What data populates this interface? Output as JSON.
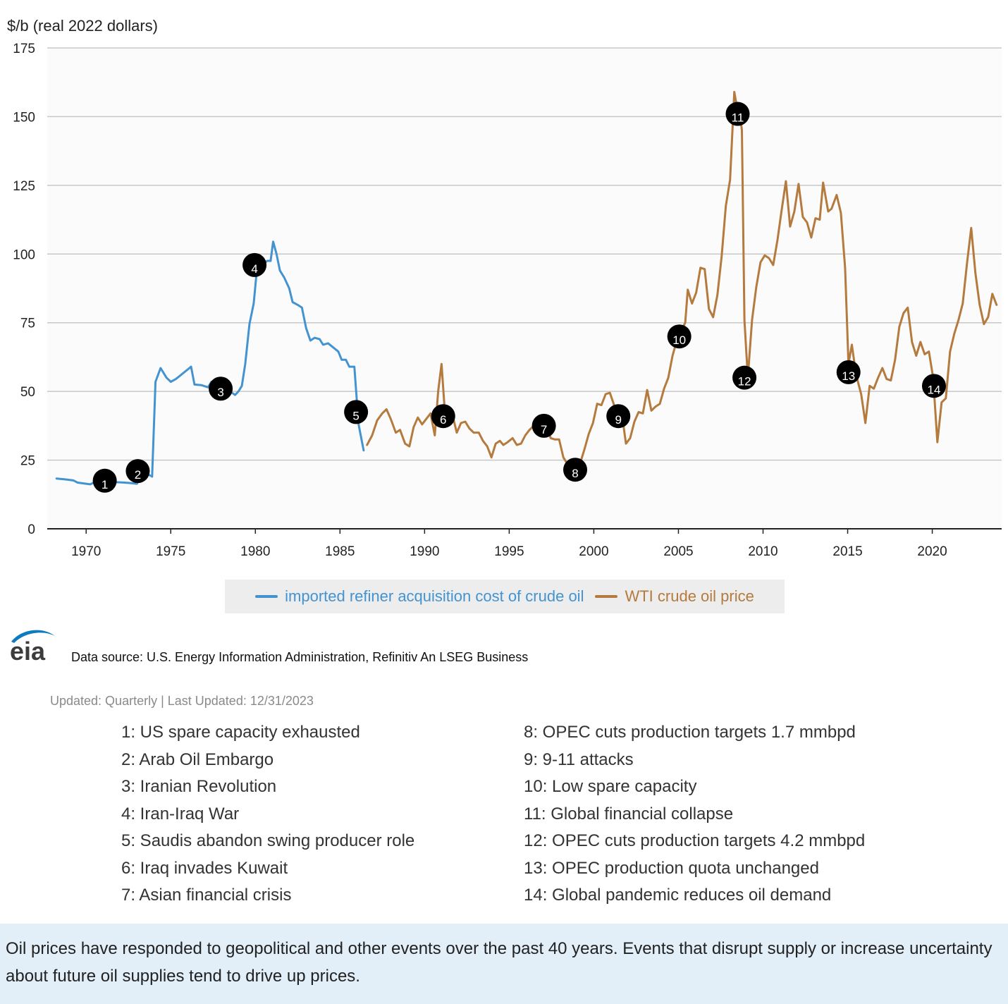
{
  "chart_data": {
    "type": "line",
    "ylabel": "$/b (real 2022 dollars)",
    "ylim": [
      0,
      175
    ],
    "xlim": [
      1967.7,
      2024.1
    ],
    "yticks": [
      0,
      25,
      50,
      75,
      100,
      125,
      150,
      175
    ],
    "xticks": [
      1970,
      1975,
      1980,
      1985,
      1990,
      1995,
      2000,
      2005,
      2010,
      2015,
      2020
    ],
    "grid": true,
    "legend_position": "bottom-center",
    "series": [
      {
        "name": "imported refiner acquisition cost of crude oil",
        "color": "#4493d1",
        "points": [
          [
            1968.25,
            18.3
          ],
          [
            1968.75,
            18
          ],
          [
            1969.25,
            17.6
          ],
          [
            1969.5,
            16.8
          ],
          [
            1970,
            16.4
          ],
          [
            1970.25,
            16.2
          ],
          [
            1970.5,
            17
          ],
          [
            1971,
            16.8
          ],
          [
            1971.5,
            17
          ],
          [
            1972,
            16.9
          ],
          [
            1972.5,
            16.7
          ],
          [
            1973,
            16.4
          ],
          [
            1973.25,
            19
          ],
          [
            1973.5,
            20
          ],
          [
            1973.75,
            19.5
          ],
          [
            1973.9,
            19
          ],
          [
            1974.1,
            53.5
          ],
          [
            1974.4,
            58.5
          ],
          [
            1974.75,
            55
          ],
          [
            1975,
            53.5
          ],
          [
            1975.3,
            54.5
          ],
          [
            1975.6,
            56
          ],
          [
            1976,
            58
          ],
          [
            1976.2,
            59
          ],
          [
            1976.4,
            52.5
          ],
          [
            1976.8,
            52.3
          ],
          [
            1977.2,
            51.5
          ],
          [
            1977.4,
            53.5
          ],
          [
            1977.75,
            53
          ],
          [
            1978.2,
            51
          ],
          [
            1978.5,
            50
          ],
          [
            1978.8,
            48.7
          ],
          [
            1979,
            50
          ],
          [
            1979.2,
            52
          ],
          [
            1979.4,
            60
          ],
          [
            1979.65,
            74.5
          ],
          [
            1979.9,
            82
          ],
          [
            1980.1,
            95
          ],
          [
            1980.4,
            96
          ],
          [
            1980.7,
            97.5
          ],
          [
            1980.9,
            97.5
          ],
          [
            1981.05,
            104.5
          ],
          [
            1981.25,
            100
          ],
          [
            1981.45,
            94
          ],
          [
            1981.7,
            91.5
          ],
          [
            1982,
            87.5
          ],
          [
            1982.2,
            82.5
          ],
          [
            1982.5,
            81.5
          ],
          [
            1982.75,
            80.5
          ],
          [
            1983,
            73
          ],
          [
            1983.25,
            68.5
          ],
          [
            1983.5,
            69.5
          ],
          [
            1983.8,
            69
          ],
          [
            1984,
            67
          ],
          [
            1984.3,
            67.5
          ],
          [
            1984.7,
            65.5
          ],
          [
            1984.9,
            64.5
          ],
          [
            1985.1,
            61.5
          ],
          [
            1985.35,
            61.5
          ],
          [
            1985.55,
            59
          ],
          [
            1985.85,
            59
          ],
          [
            1986.1,
            38
          ],
          [
            1986.4,
            28.5
          ]
        ]
      },
      {
        "name": "WTI crude oil price",
        "color": "#b47a3e",
        "points": [
          [
            1986.6,
            30.5
          ],
          [
            1986.9,
            34
          ],
          [
            1987.2,
            39.5
          ],
          [
            1987.5,
            42
          ],
          [
            1987.75,
            43.5
          ],
          [
            1988,
            40
          ],
          [
            1988.3,
            35
          ],
          [
            1988.55,
            36
          ],
          [
            1988.85,
            31
          ],
          [
            1989.1,
            30
          ],
          [
            1989.35,
            37
          ],
          [
            1989.6,
            40.5
          ],
          [
            1989.85,
            38
          ],
          [
            1990.1,
            40
          ],
          [
            1990.35,
            42
          ],
          [
            1990.6,
            34
          ],
          [
            1990.8,
            50
          ],
          [
            1991,
            60
          ],
          [
            1991.2,
            42
          ],
          [
            1991.45,
            40
          ],
          [
            1991.7,
            40
          ],
          [
            1991.9,
            35
          ],
          [
            1992.15,
            38.5
          ],
          [
            1992.4,
            39
          ],
          [
            1992.65,
            36.5
          ],
          [
            1992.9,
            35
          ],
          [
            1993.2,
            35
          ],
          [
            1993.45,
            32
          ],
          [
            1993.7,
            30
          ],
          [
            1993.95,
            26
          ],
          [
            1994.2,
            31
          ],
          [
            1994.45,
            32
          ],
          [
            1994.65,
            30.5
          ],
          [
            1994.9,
            31.5
          ],
          [
            1995.2,
            33
          ],
          [
            1995.45,
            30.5
          ],
          [
            1995.7,
            31
          ],
          [
            1995.95,
            34
          ],
          [
            1996.2,
            36
          ],
          [
            1996.45,
            37.5
          ],
          [
            1996.7,
            38.5
          ],
          [
            1996.95,
            39.5
          ],
          [
            1997.2,
            37.5
          ],
          [
            1997.45,
            33
          ],
          [
            1997.7,
            32.5
          ],
          [
            1997.95,
            32.5
          ],
          [
            1998.2,
            26
          ],
          [
            1998.45,
            23.5
          ],
          [
            1998.7,
            22.5
          ],
          [
            1998.95,
            22
          ],
          [
            1999.2,
            24
          ],
          [
            1999.45,
            29
          ],
          [
            1999.7,
            34.5
          ],
          [
            1999.95,
            38.5
          ],
          [
            2000.2,
            45.5
          ],
          [
            2000.45,
            45
          ],
          [
            2000.7,
            49
          ],
          [
            2000.95,
            49.5
          ],
          [
            2001.2,
            45
          ],
          [
            2001.45,
            44
          ],
          [
            2001.7,
            40
          ],
          [
            2001.9,
            31
          ],
          [
            2002.15,
            33
          ],
          [
            2002.4,
            39
          ],
          [
            2002.65,
            42.5
          ],
          [
            2002.9,
            42
          ],
          [
            2003.15,
            50.5
          ],
          [
            2003.4,
            43
          ],
          [
            2003.65,
            44.5
          ],
          [
            2003.9,
            45.5
          ],
          [
            2004.15,
            51
          ],
          [
            2004.4,
            55
          ],
          [
            2004.65,
            63
          ],
          [
            2004.9,
            68.5
          ],
          [
            2005.15,
            72
          ],
          [
            2005.4,
            75
          ],
          [
            2005.55,
            87
          ],
          [
            2005.8,
            82
          ],
          [
            2006.05,
            86
          ],
          [
            2006.3,
            95
          ],
          [
            2006.55,
            94.5
          ],
          [
            2006.8,
            80
          ],
          [
            2007.05,
            77
          ],
          [
            2007.3,
            85
          ],
          [
            2007.55,
            99
          ],
          [
            2007.8,
            117.5
          ],
          [
            2008.05,
            127
          ],
          [
            2008.3,
            159
          ],
          [
            2008.5,
            152
          ],
          [
            2008.65,
            150
          ],
          [
            2008.75,
            145
          ],
          [
            2008.9,
            76
          ],
          [
            2009.1,
            55
          ],
          [
            2009.35,
            76
          ],
          [
            2009.6,
            88
          ],
          [
            2009.85,
            97
          ],
          [
            2010.1,
            99.5
          ],
          [
            2010.35,
            98.5
          ],
          [
            2010.6,
            96
          ],
          [
            2010.85,
            105
          ],
          [
            2011.1,
            116
          ],
          [
            2011.35,
            126.5
          ],
          [
            2011.6,
            110
          ],
          [
            2011.85,
            115.5
          ],
          [
            2012.1,
            125.5
          ],
          [
            2012.35,
            113.5
          ],
          [
            2012.6,
            111.5
          ],
          [
            2012.85,
            106
          ],
          [
            2013.1,
            113
          ],
          [
            2013.35,
            112.5
          ],
          [
            2013.55,
            126
          ],
          [
            2013.85,
            115.5
          ],
          [
            2014.05,
            116.5
          ],
          [
            2014.35,
            121.5
          ],
          [
            2014.6,
            115
          ],
          [
            2014.85,
            95
          ],
          [
            2015.05,
            60
          ],
          [
            2015.25,
            67
          ],
          [
            2015.5,
            56
          ],
          [
            2015.8,
            49
          ],
          [
            2016.05,
            38.5
          ],
          [
            2016.3,
            52
          ],
          [
            2016.55,
            51
          ],
          [
            2016.8,
            55
          ],
          [
            2017.05,
            58.5
          ],
          [
            2017.3,
            54.5
          ],
          [
            2017.55,
            54
          ],
          [
            2017.8,
            61.5
          ],
          [
            2018.05,
            73.5
          ],
          [
            2018.3,
            78.5
          ],
          [
            2018.55,
            80.5
          ],
          [
            2018.8,
            68
          ],
          [
            2019.05,
            63
          ],
          [
            2019.3,
            68
          ],
          [
            2019.55,
            63.5
          ],
          [
            2019.8,
            64.5
          ],
          [
            2020.05,
            55
          ],
          [
            2020.3,
            31.5
          ],
          [
            2020.55,
            46
          ],
          [
            2020.8,
            47.5
          ],
          [
            2021.05,
            64.5
          ],
          [
            2021.3,
            71
          ],
          [
            2021.55,
            76
          ],
          [
            2021.8,
            82
          ],
          [
            2022.05,
            96.5
          ],
          [
            2022.3,
            109.5
          ],
          [
            2022.55,
            93
          ],
          [
            2022.8,
            81.5
          ],
          [
            2023.05,
            74.5
          ],
          [
            2023.3,
            77
          ],
          [
            2023.55,
            85.5
          ],
          [
            2023.8,
            81.5
          ]
        ]
      }
    ],
    "annotations": [
      {
        "label": "1",
        "x": 1971.1,
        "y": 17.5
      },
      {
        "label": "2",
        "x": 1973.05,
        "y": 21
      },
      {
        "label": "3",
        "x": 1977.95,
        "y": 51
      },
      {
        "label": "4",
        "x": 1979.95,
        "y": 96
      },
      {
        "label": "5",
        "x": 1985.95,
        "y": 42.5
      },
      {
        "label": "6",
        "x": 1991.1,
        "y": 41
      },
      {
        "label": "7",
        "x": 1997.05,
        "y": 37.5
      },
      {
        "label": "8",
        "x": 1998.9,
        "y": 21.5
      },
      {
        "label": "9",
        "x": 2001.45,
        "y": 41
      },
      {
        "label": "10",
        "x": 2005.05,
        "y": 70
      },
      {
        "label": "11",
        "x": 2008.5,
        "y": 151
      },
      {
        "label": "12",
        "x": 2008.9,
        "y": 55
      },
      {
        "label": "13",
        "x": 2015.05,
        "y": 57
      },
      {
        "label": "14",
        "x": 2020.1,
        "y": 52
      }
    ]
  },
  "legend": {
    "items": [
      {
        "label": "imported refiner acquisition cost of crude oil",
        "color": "#4493d1"
      },
      {
        "label": "WTI crude oil price",
        "color": "#b47a3e"
      }
    ]
  },
  "logo": {
    "text": "eia",
    "color": "#0e7bbf"
  },
  "source": "Data source: U.S. Energy Information Administration, Refinitiv An LSEG Business",
  "updated": "Updated: Quarterly | Last Updated: 12/31/2023",
  "events_left": [
    "1: US spare capacity exhausted",
    "2: Arab Oil Embargo",
    "3: Iranian Revolution",
    "4: Iran-Iraq War",
    "5: Saudis abandon swing producer role",
    "6: Iraq invades Kuwait",
    "7: Asian financial crisis"
  ],
  "events_right": [
    "8: OPEC cuts production targets 1.7 mmbpd",
    "9: 9-11 attacks",
    "10: Low spare capacity",
    "11: Global financial collapse",
    "12: OPEC cuts production targets 4.2 mmbpd",
    "13: OPEC production quota unchanged",
    "14: Global pandemic reduces oil demand"
  ],
  "caption": "Oil prices have responded to geopolitical and other events over the past 40 years. Events that disrupt supply or increase uncertainty about future oil supplies tend to drive up prices."
}
